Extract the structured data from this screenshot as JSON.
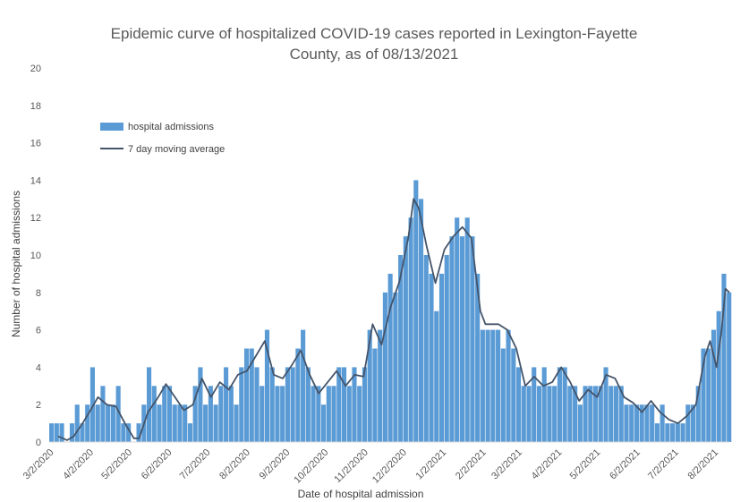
{
  "chart_data": {
    "type": "bar",
    "title_lines": [
      "Epidemic curve of hospitalized COVID-19 cases reported in Lexington-Fayette",
      "County, as of 08/13/2021"
    ],
    "xlabel": "Date of hospital admission",
    "ylabel": "Number of hospital admissions",
    "ylim": [
      0,
      20
    ],
    "yticks": [
      "0",
      "2",
      "4",
      "6",
      "8",
      "10",
      "12",
      "14",
      "16",
      "18",
      "20"
    ],
    "x_range": [
      "2020-03-01",
      "2021-08-13"
    ],
    "x_ticks": [
      {
        "label": "3/2/2020",
        "date": "2020-03-02"
      },
      {
        "label": "4/2/2020",
        "date": "2020-04-02"
      },
      {
        "label": "5/2/2020",
        "date": "2020-05-02"
      },
      {
        "label": "6/2/2020",
        "date": "2020-06-02"
      },
      {
        "label": "7/2/2020",
        "date": "2020-07-02"
      },
      {
        "label": "8/2/2020",
        "date": "2020-08-02"
      },
      {
        "label": "9/2/2020",
        "date": "2020-09-02"
      },
      {
        "label": "10/2/2020",
        "date": "2020-10-02"
      },
      {
        "label": "11/2/2020",
        "date": "2020-11-02"
      },
      {
        "label": "12/2/2020",
        "date": "2020-12-02"
      },
      {
        "label": "1/2/2021",
        "date": "2021-01-02"
      },
      {
        "label": "2/2/2021",
        "date": "2021-02-02"
      },
      {
        "label": "3/2/2021",
        "date": "2021-03-02"
      },
      {
        "label": "4/2/2021",
        "date": "2021-04-02"
      },
      {
        "label": "5/2/2021",
        "date": "2021-05-02"
      },
      {
        "label": "6/2/2021",
        "date": "2021-06-02"
      },
      {
        "label": "7/2/2021",
        "date": "2021-07-02"
      },
      {
        "label": "8/2/2021",
        "date": "2021-08-02"
      }
    ],
    "legend": {
      "placement": "top-left"
    },
    "grid": false,
    "series": [
      {
        "name": "hospital admissions",
        "kind": "bar",
        "color": "#5B9BD5",
        "points": [
          [
            "2020-03-01",
            1
          ],
          [
            "2020-03-05",
            1
          ],
          [
            "2020-03-09",
            1
          ],
          [
            "2020-03-13",
            0
          ],
          [
            "2020-03-17",
            1
          ],
          [
            "2020-03-21",
            2
          ],
          [
            "2020-03-25",
            1
          ],
          [
            "2020-03-29",
            2
          ],
          [
            "2020-04-02",
            4
          ],
          [
            "2020-04-06",
            2
          ],
          [
            "2020-04-10",
            3
          ],
          [
            "2020-04-14",
            2
          ],
          [
            "2020-04-18",
            2
          ],
          [
            "2020-04-22",
            3
          ],
          [
            "2020-04-26",
            1
          ],
          [
            "2020-04-30",
            1
          ],
          [
            "2020-05-04",
            0
          ],
          [
            "2020-05-08",
            1
          ],
          [
            "2020-05-12",
            2
          ],
          [
            "2020-05-16",
            4
          ],
          [
            "2020-05-20",
            3
          ],
          [
            "2020-05-24",
            2
          ],
          [
            "2020-05-28",
            3
          ],
          [
            "2020-06-01",
            3
          ],
          [
            "2020-06-05",
            2
          ],
          [
            "2020-06-09",
            2
          ],
          [
            "2020-06-13",
            2
          ],
          [
            "2020-06-17",
            1
          ],
          [
            "2020-06-21",
            3
          ],
          [
            "2020-06-25",
            4
          ],
          [
            "2020-06-29",
            2
          ],
          [
            "2020-07-03",
            3
          ],
          [
            "2020-07-07",
            2
          ],
          [
            "2020-07-11",
            3
          ],
          [
            "2020-07-15",
            4
          ],
          [
            "2020-07-19",
            3
          ],
          [
            "2020-07-23",
            2
          ],
          [
            "2020-07-27",
            4
          ],
          [
            "2020-07-31",
            5
          ],
          [
            "2020-08-04",
            5
          ],
          [
            "2020-08-08",
            4
          ],
          [
            "2020-08-12",
            3
          ],
          [
            "2020-08-16",
            6
          ],
          [
            "2020-08-20",
            4
          ],
          [
            "2020-08-24",
            3
          ],
          [
            "2020-08-28",
            3
          ],
          [
            "2020-09-01",
            4
          ],
          [
            "2020-09-05",
            4
          ],
          [
            "2020-09-09",
            5
          ],
          [
            "2020-09-13",
            6
          ],
          [
            "2020-09-17",
            4
          ],
          [
            "2020-09-21",
            3
          ],
          [
            "2020-09-25",
            3
          ],
          [
            "2020-09-29",
            2
          ],
          [
            "2020-10-03",
            3
          ],
          [
            "2020-10-07",
            3
          ],
          [
            "2020-10-11",
            4
          ],
          [
            "2020-10-15",
            4
          ],
          [
            "2020-10-19",
            3
          ],
          [
            "2020-10-23",
            4
          ],
          [
            "2020-10-27",
            3
          ],
          [
            "2020-10-31",
            4
          ],
          [
            "2020-11-04",
            6
          ],
          [
            "2020-11-08",
            5
          ],
          [
            "2020-11-12",
            6
          ],
          [
            "2020-11-16",
            8
          ],
          [
            "2020-11-20",
            9
          ],
          [
            "2020-11-24",
            8
          ],
          [
            "2020-11-28",
            10
          ],
          [
            "2020-12-02",
            11
          ],
          [
            "2020-12-06",
            12
          ],
          [
            "2020-12-10",
            14
          ],
          [
            "2020-12-14",
            13
          ],
          [
            "2020-12-18",
            10
          ],
          [
            "2020-12-22",
            9
          ],
          [
            "2020-12-26",
            7
          ],
          [
            "2020-12-30",
            9
          ],
          [
            "2021-01-03",
            10
          ],
          [
            "2021-01-07",
            11
          ],
          [
            "2021-01-11",
            12
          ],
          [
            "2021-01-15",
            11
          ],
          [
            "2021-01-19",
            12
          ],
          [
            "2021-01-23",
            11
          ],
          [
            "2021-01-27",
            9
          ],
          [
            "2021-01-31",
            6
          ],
          [
            "2021-02-04",
            6
          ],
          [
            "2021-02-08",
            6
          ],
          [
            "2021-02-12",
            6
          ],
          [
            "2021-02-16",
            5
          ],
          [
            "2021-02-20",
            6
          ],
          [
            "2021-02-24",
            5
          ],
          [
            "2021-02-28",
            4
          ],
          [
            "2021-03-04",
            3
          ],
          [
            "2021-03-08",
            3
          ],
          [
            "2021-03-12",
            4
          ],
          [
            "2021-03-16",
            3
          ],
          [
            "2021-03-20",
            4
          ],
          [
            "2021-03-24",
            3
          ],
          [
            "2021-03-28",
            3
          ],
          [
            "2021-04-01",
            4
          ],
          [
            "2021-04-05",
            4
          ],
          [
            "2021-04-09",
            3
          ],
          [
            "2021-04-13",
            3
          ],
          [
            "2021-04-17",
            2
          ],
          [
            "2021-04-21",
            3
          ],
          [
            "2021-04-25",
            3
          ],
          [
            "2021-04-29",
            3
          ],
          [
            "2021-05-03",
            3
          ],
          [
            "2021-05-07",
            4
          ],
          [
            "2021-05-11",
            3
          ],
          [
            "2021-05-15",
            3
          ],
          [
            "2021-05-19",
            3
          ],
          [
            "2021-05-23",
            2
          ],
          [
            "2021-05-27",
            2
          ],
          [
            "2021-05-31",
            2
          ],
          [
            "2021-06-04",
            2
          ],
          [
            "2021-06-08",
            2
          ],
          [
            "2021-06-12",
            2
          ],
          [
            "2021-06-16",
            1
          ],
          [
            "2021-06-20",
            2
          ],
          [
            "2021-06-24",
            1
          ],
          [
            "2021-06-28",
            1
          ],
          [
            "2021-07-02",
            1
          ],
          [
            "2021-07-06",
            1
          ],
          [
            "2021-07-10",
            2
          ],
          [
            "2021-07-14",
            2
          ],
          [
            "2021-07-18",
            3
          ],
          [
            "2021-07-22",
            5
          ],
          [
            "2021-07-26",
            5
          ],
          [
            "2021-07-30",
            6
          ],
          [
            "2021-08-03",
            7
          ],
          [
            "2021-08-07",
            9
          ],
          [
            "2021-08-11",
            8
          ]
        ]
      },
      {
        "name": "7 day moving average",
        "kind": "line",
        "color": "#44546A",
        "points": [
          [
            "2020-03-08",
            0.3
          ],
          [
            "2020-03-15",
            0.1
          ],
          [
            "2020-03-20",
            0.3
          ],
          [
            "2020-03-27",
            1.0
          ],
          [
            "2020-04-03",
            1.8
          ],
          [
            "2020-04-08",
            2.4
          ],
          [
            "2020-04-15",
            2.0
          ],
          [
            "2020-04-22",
            1.9
          ],
          [
            "2020-04-29",
            1.0
          ],
          [
            "2020-05-06",
            0.2
          ],
          [
            "2020-05-10",
            0.2
          ],
          [
            "2020-05-17",
            1.6
          ],
          [
            "2020-05-24",
            2.3
          ],
          [
            "2020-05-31",
            3.1
          ],
          [
            "2020-06-07",
            2.4
          ],
          [
            "2020-06-14",
            1.7
          ],
          [
            "2020-06-21",
            2.0
          ],
          [
            "2020-06-28",
            3.4
          ],
          [
            "2020-07-05",
            2.4
          ],
          [
            "2020-07-12",
            3.2
          ],
          [
            "2020-07-19",
            2.8
          ],
          [
            "2020-07-26",
            3.6
          ],
          [
            "2020-08-02",
            3.8
          ],
          [
            "2020-08-09",
            4.6
          ],
          [
            "2020-08-16",
            5.4
          ],
          [
            "2020-08-23",
            3.6
          ],
          [
            "2020-08-30",
            3.4
          ],
          [
            "2020-09-06",
            4.1
          ],
          [
            "2020-09-13",
            4.9
          ],
          [
            "2020-09-20",
            3.6
          ],
          [
            "2020-09-27",
            2.6
          ],
          [
            "2020-10-04",
            3.2
          ],
          [
            "2020-10-11",
            3.8
          ],
          [
            "2020-10-18",
            3.0
          ],
          [
            "2020-10-25",
            3.6
          ],
          [
            "2020-11-01",
            3.5
          ],
          [
            "2020-11-08",
            6.3
          ],
          [
            "2020-11-15",
            5.2
          ],
          [
            "2020-11-22",
            7.2
          ],
          [
            "2020-11-29",
            8.6
          ],
          [
            "2020-12-06",
            11.0
          ],
          [
            "2020-12-10",
            13.0
          ],
          [
            "2020-12-14",
            12.5
          ],
          [
            "2020-12-20",
            10.5
          ],
          [
            "2020-12-27",
            8.5
          ],
          [
            "2021-01-03",
            10.3
          ],
          [
            "2021-01-10",
            11.0
          ],
          [
            "2021-01-17",
            11.5
          ],
          [
            "2021-01-24",
            10.9
          ],
          [
            "2021-01-31",
            7.0
          ],
          [
            "2021-02-04",
            6.3
          ],
          [
            "2021-02-14",
            6.3
          ],
          [
            "2021-02-21",
            6.0
          ],
          [
            "2021-02-28",
            5.0
          ],
          [
            "2021-03-07",
            3.0
          ],
          [
            "2021-03-14",
            3.5
          ],
          [
            "2021-03-21",
            3.0
          ],
          [
            "2021-03-28",
            3.2
          ],
          [
            "2021-04-04",
            4.0
          ],
          [
            "2021-04-11",
            3.2
          ],
          [
            "2021-04-18",
            2.2
          ],
          [
            "2021-04-25",
            2.8
          ],
          [
            "2021-05-02",
            2.4
          ],
          [
            "2021-05-09",
            3.6
          ],
          [
            "2021-05-16",
            3.4
          ],
          [
            "2021-05-23",
            2.4
          ],
          [
            "2021-05-30",
            2.1
          ],
          [
            "2021-06-06",
            1.6
          ],
          [
            "2021-06-13",
            2.2
          ],
          [
            "2021-06-20",
            1.6
          ],
          [
            "2021-06-27",
            1.2
          ],
          [
            "2021-07-04",
            1.0
          ],
          [
            "2021-07-11",
            1.4
          ],
          [
            "2021-07-18",
            2.0
          ],
          [
            "2021-07-25",
            4.6
          ],
          [
            "2021-07-29",
            5.4
          ],
          [
            "2021-08-03",
            4.0
          ],
          [
            "2021-08-07",
            6.0
          ],
          [
            "2021-08-10",
            8.2
          ],
          [
            "2021-08-13",
            8.0
          ]
        ]
      }
    ]
  }
}
